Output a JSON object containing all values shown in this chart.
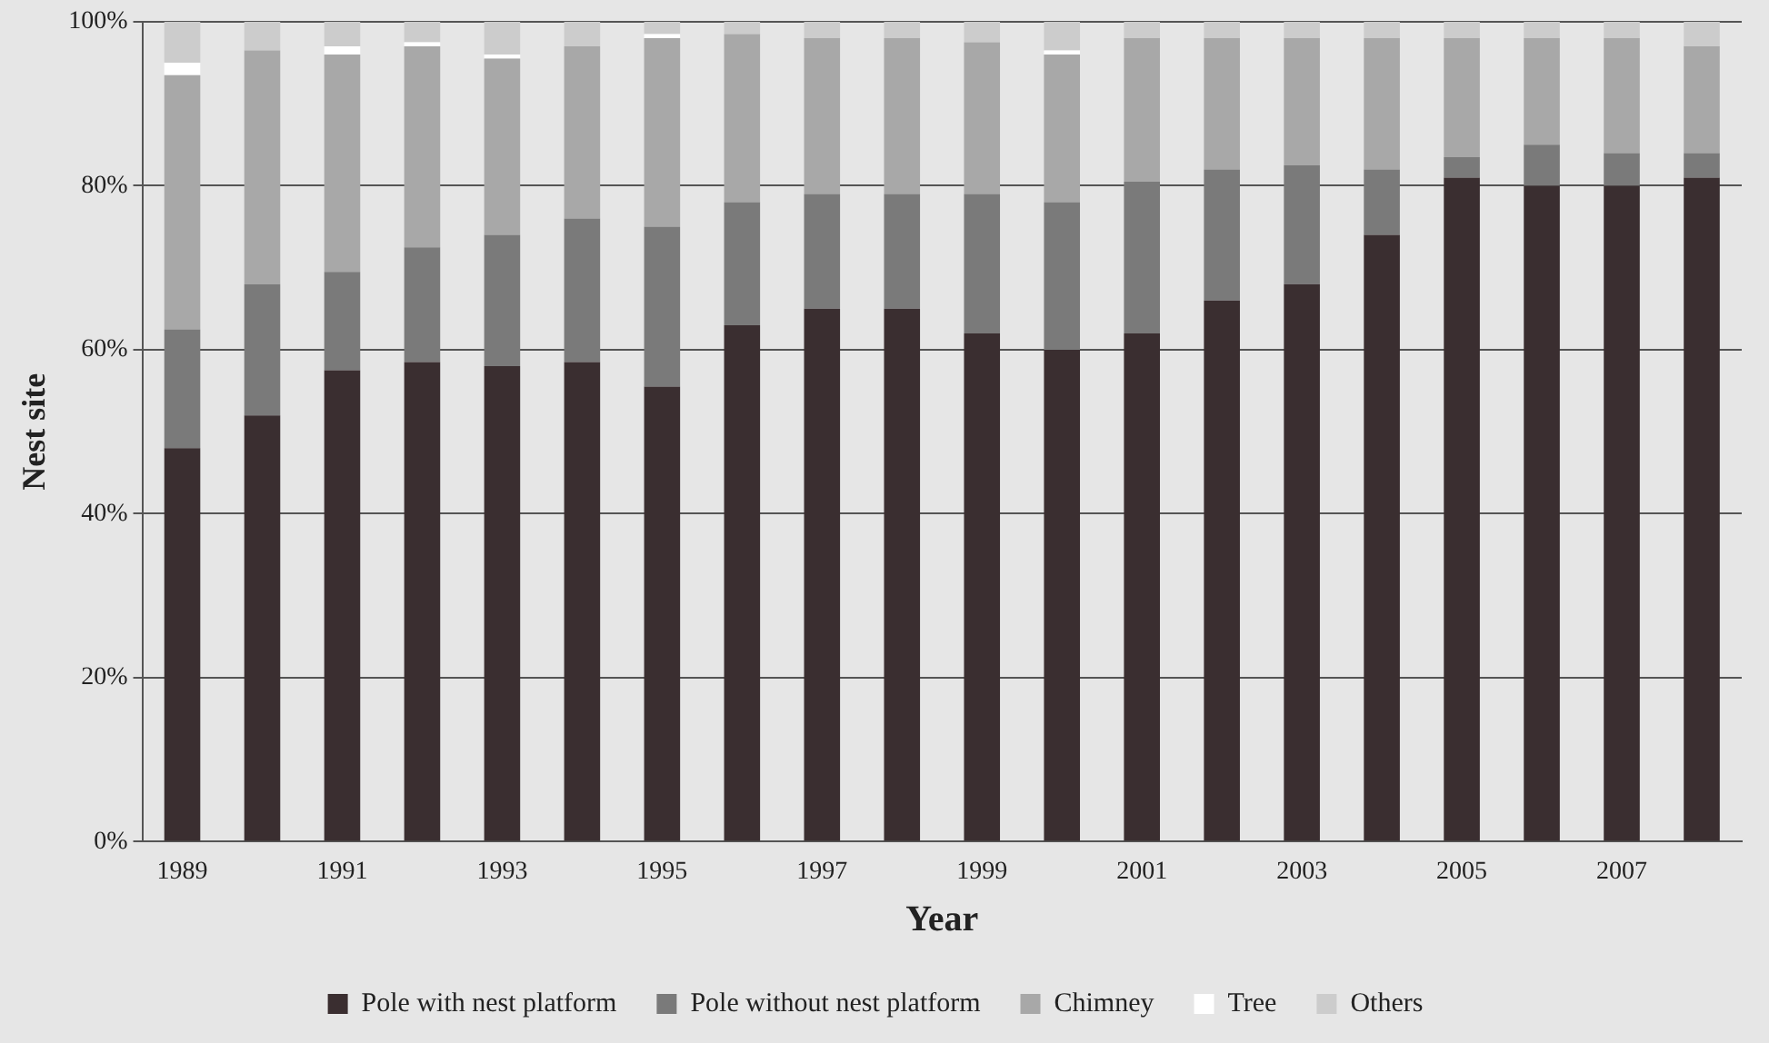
{
  "chart_data": {
    "type": "bar",
    "stacked": true,
    "xlabel": "Year",
    "ylabel": "Nest site",
    "categories": [
      "1989",
      null,
      "1991",
      null,
      "1993",
      null,
      "1995",
      null,
      "1997",
      null,
      "1999",
      null,
      "2001",
      null,
      "2003",
      null,
      "2005",
      null,
      "2007",
      null
    ],
    "series": [
      {
        "name": "Pole with nest platform",
        "color": "#3a2e30",
        "values": [
          48,
          52,
          57.5,
          58.5,
          58,
          58.5,
          55.5,
          63,
          65,
          65,
          62,
          60,
          62,
          66,
          68,
          74,
          81,
          80,
          80,
          81
        ]
      },
      {
        "name": "Pole without nest platform",
        "color": "#7a7a7a",
        "values": [
          14.5,
          16,
          12,
          14,
          16,
          17.5,
          19.5,
          15,
          14,
          14,
          17,
          18,
          18.5,
          16,
          14.5,
          8,
          2.5,
          5,
          4,
          3
        ]
      },
      {
        "name": "Chimney",
        "color": "#a8a8a8",
        "values": [
          31,
          28.5,
          26.5,
          24.5,
          21.5,
          21,
          23,
          20.5,
          19,
          19,
          18.5,
          18,
          17.5,
          16,
          15.5,
          16,
          14.5,
          13,
          14,
          13
        ]
      },
      {
        "name": "Tree",
        "color": "#ffffff",
        "values": [
          1.5,
          0,
          1,
          0.5,
          0.5,
          0,
          0.5,
          0,
          0,
          0,
          0,
          0.5,
          0,
          0,
          0,
          0,
          0,
          0,
          0,
          0
        ]
      },
      {
        "name": "Others",
        "color": "#cccccc",
        "values": [
          5,
          3.5,
          3,
          2.5,
          4,
          3,
          1.5,
          1.5,
          2,
          2,
          2.5,
          3.5,
          2,
          2,
          2,
          2,
          2,
          2,
          2,
          3
        ]
      }
    ],
    "ylim": [
      0,
      100
    ],
    "yticks": [
      {
        "value": 0,
        "label": "0%"
      },
      {
        "value": 20,
        "label": "20%"
      },
      {
        "value": 40,
        "label": "40%"
      },
      {
        "value": 60,
        "label": "60%"
      },
      {
        "value": 80,
        "label": "80%"
      },
      {
        "value": 100,
        "label": "100%"
      }
    ],
    "grid": "y",
    "legend": "bottom"
  }
}
